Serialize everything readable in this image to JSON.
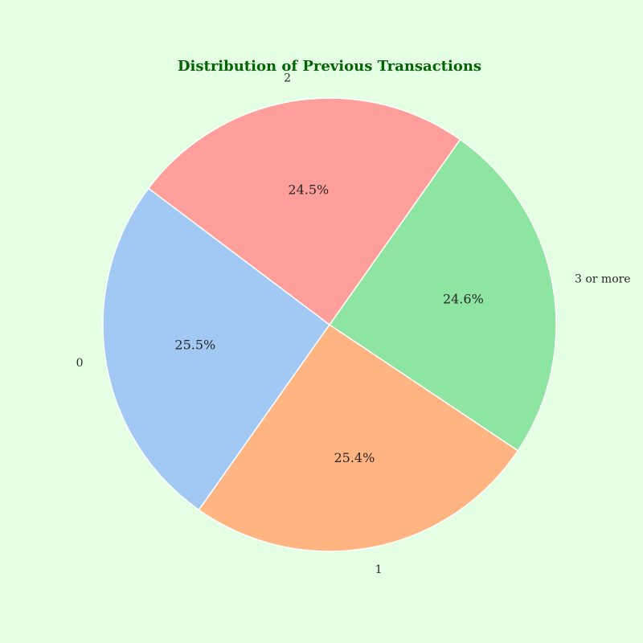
{
  "chart_data": {
    "type": "pie",
    "title": "Distribution of Previous Transactions",
    "categories": [
      "0",
      "1",
      "3 or more",
      "2"
    ],
    "values": [
      25.5,
      25.4,
      24.6,
      24.5
    ],
    "value_labels": [
      "25.5%",
      "25.4%",
      "24.6%",
      "24.5%"
    ],
    "colors": [
      "#a1c9f4",
      "#ffb482",
      "#8de5a1",
      "#ff9f9b"
    ],
    "start_angle_deg": 143,
    "direction": "counterclockwise",
    "legend": "none"
  },
  "colors": {
    "background": "#e5ffe5",
    "title": "#006400",
    "wedge_edge": "#ffffff",
    "label_text": "#262626"
  }
}
